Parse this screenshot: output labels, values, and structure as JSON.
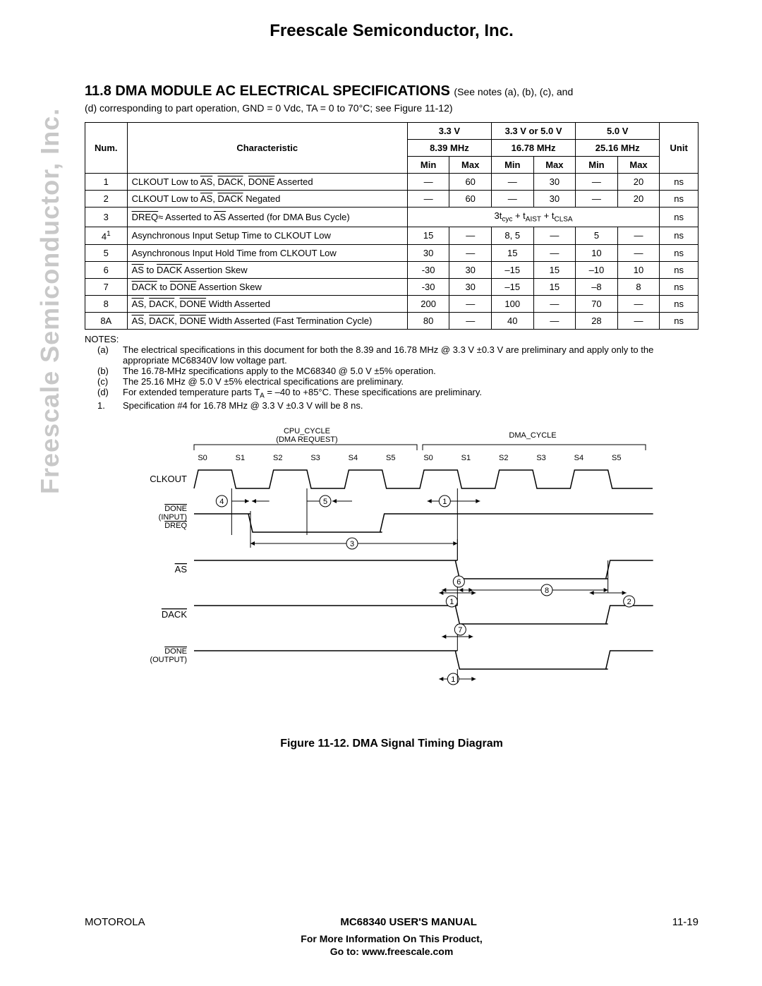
{
  "company": "Freescale Semiconductor, Inc.",
  "watermark": "Freescale Semiconductor, Inc.",
  "section": {
    "number": "11.8",
    "title": "DMA MODULE AC ELECTRICAL SPECIFICATIONS",
    "note_ref": "(See notes (a), (b), (c), and",
    "sub": "(d) corresponding to part operation, GND = 0 Vdc, TA = 0 to 70°C; see Figure 11-12)"
  },
  "table": {
    "volt_headers": [
      "3.3 V",
      "3.3 V or 5.0 V",
      "5.0 V"
    ],
    "freq_headers": [
      "8.39 MHz",
      "16.78 MHz",
      "25.16 MHz"
    ],
    "col_num": "Num.",
    "col_char": "Characteristic",
    "col_min": "Min",
    "col_max": "Max",
    "col_unit": "Unit",
    "formula": "3tcyc + tAIST + tCLSA",
    "rows": [
      {
        "num": "1",
        "char": "CLKOUT Low to AS, DACK, DONE Asserted",
        "v": [
          "—",
          "60",
          "—",
          "30",
          "—",
          "20"
        ],
        "unit": "ns"
      },
      {
        "num": "2",
        "char": "CLKOUT Low to AS, DACK Negated",
        "v": [
          "—",
          "60",
          "—",
          "30",
          "—",
          "20"
        ],
        "unit": "ns"
      },
      {
        "num": "3",
        "char": "DREQ≈ Asserted to AS Asserted (for DMA Bus Cycle)",
        "formula": true,
        "unit": "ns"
      },
      {
        "num": "4",
        "sup": "1",
        "char": "Asynchronous Input Setup Time to CLKOUT Low",
        "v": [
          "15",
          "—",
          "8, 5",
          "—",
          "5",
          "—"
        ],
        "unit": "ns"
      },
      {
        "num": "5",
        "char": "Asynchronous Input Hold Time from CLKOUT Low",
        "v": [
          "30",
          "—",
          "15",
          "—",
          "10",
          "—"
        ],
        "unit": "ns"
      },
      {
        "num": "6",
        "char": "AS to DACK Assertion Skew",
        "v": [
          "-30",
          "30",
          "–15",
          "15",
          "–10",
          "10"
        ],
        "unit": "ns"
      },
      {
        "num": "7",
        "char": "DACK to DONE Assertion Skew",
        "v": [
          "-30",
          "30",
          "–15",
          "15",
          "–8",
          "8"
        ],
        "unit": "ns"
      },
      {
        "num": "8",
        "char": "AS, DACK, DONE Width Asserted",
        "v": [
          "200",
          "—",
          "100",
          "—",
          "70",
          "—"
        ],
        "unit": "ns"
      },
      {
        "num": "8A",
        "char": "AS, DACK, DONE Width Asserted (Fast Termination Cycle)",
        "v": [
          "80",
          "—",
          "40",
          "—",
          "28",
          "—"
        ],
        "unit": "ns"
      }
    ]
  },
  "notes": {
    "label": "NOTES:",
    "items": [
      {
        "k": "(a)",
        "t": "The electrical specifications in this document for both the 8.39 and 16.78 MHz @ 3.3 V ±0.3 V are preliminary and apply only to the appropriate MC68340V low voltage part."
      },
      {
        "k": "(b)",
        "t": "The 16.78-MHz specifications apply to the MC68340 @ 5.0 V ±5% operation."
      },
      {
        "k": "(c)",
        "t": "The 25.16 MHz @ 5.0 V ±5% electrical specifications are preliminary."
      },
      {
        "k": "(d)",
        "t": "For extended temperature parts TA = –40 to +85°C. These specifications are preliminary."
      },
      {
        "k": "1.",
        "t": "Specification #4 for 16.78 MHz @ 3.3 V ±0.3 V will be 8 ns."
      }
    ]
  },
  "diagram": {
    "cpu_label": "CPU_CYCLE",
    "cpu_sub": "(DMA REQUEST)",
    "dma_label": "DMA_CYCLE",
    "states": [
      "S0",
      "S1",
      "S2",
      "S3",
      "S4",
      "S5",
      "S0",
      "S1",
      "S2",
      "S3",
      "S4",
      "S5"
    ],
    "signals": {
      "clkout": "CLKOUT",
      "done_in1": "DONE (INPUT)",
      "dreq": "DREQ",
      "as": "AS",
      "dack": "DACK",
      "done_out1": "DONE",
      "done_out2": "(OUTPUT)"
    },
    "markers": [
      "1",
      "2",
      "3",
      "4",
      "5",
      "6",
      "7",
      "8"
    ],
    "caption": "Figure 11-12. DMA Signal Timing Diagram",
    "stroke": "#000000",
    "text_color": "#000000",
    "font_small": 11,
    "font_label": 13
  },
  "footer": {
    "left": "MOTOROLA",
    "center": "MC68340 USER'S MANUAL",
    "right": "11-19",
    "info1": "For More Information On This Product,",
    "info2": "Go to: www.freescale.com"
  }
}
